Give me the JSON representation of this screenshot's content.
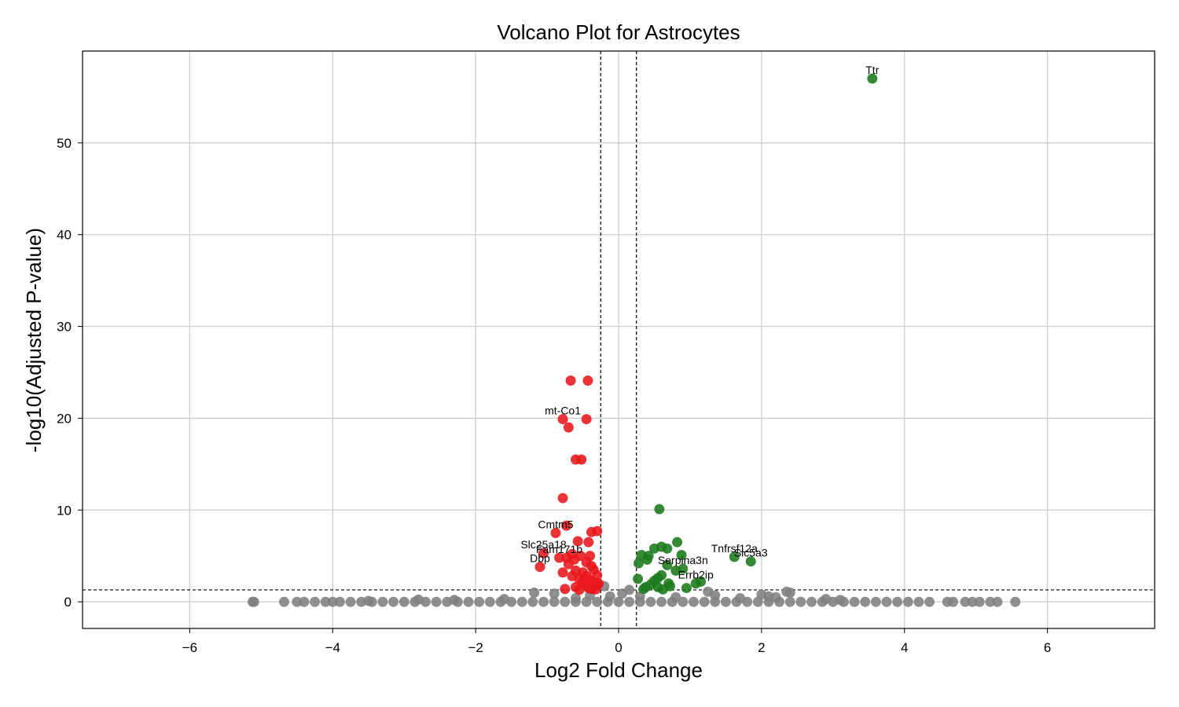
{
  "chart_data": {
    "type": "scatter",
    "title": "Volcano Plot for Astrocytes",
    "xlabel": "Log2 Fold Change",
    "ylabel": "-log10(Adjusted P-value)",
    "xlim": [
      -7.5,
      7.5
    ],
    "ylim": [
      -2.9,
      60
    ],
    "xticks": [
      -6,
      -4,
      -2,
      0,
      2,
      4,
      6
    ],
    "xtick_labels": [
      "−6",
      "−4",
      "−2",
      "0",
      "2",
      "4",
      "6"
    ],
    "yticks": [
      0,
      10,
      20,
      30,
      40,
      50
    ],
    "ytick_labels": [
      "0",
      "10",
      "20",
      "30",
      "40",
      "50"
    ],
    "grid": true,
    "thresholds": {
      "log2fc": [
        -0.25,
        0.25
      ],
      "neg_log10_padj": 1.3
    },
    "colors": {
      "up": "#1a7a1a",
      "down": "#e8161b",
      "ns": "#808080",
      "threshold_line": "#000000",
      "grid": "#cccccc"
    },
    "series": [
      {
        "key": "up",
        "points": [
          [
            3.55,
            57.0
          ],
          [
            0.57,
            10.1
          ],
          [
            0.82,
            6.5
          ],
          [
            0.6,
            6.0
          ],
          [
            0.5,
            5.8
          ],
          [
            0.68,
            5.8
          ],
          [
            0.88,
            5.1
          ],
          [
            0.32,
            5.1
          ],
          [
            0.42,
            5.0
          ],
          [
            0.4,
            4.6
          ],
          [
            0.28,
            4.2
          ],
          [
            0.68,
            4.0
          ],
          [
            1.62,
            4.9
          ],
          [
            1.85,
            4.4
          ],
          [
            0.9,
            3.6
          ],
          [
            0.8,
            3.4
          ],
          [
            0.6,
            2.9
          ],
          [
            0.55,
            2.6
          ],
          [
            0.27,
            2.5
          ],
          [
            0.5,
            2.3
          ],
          [
            0.7,
            2.0
          ],
          [
            1.08,
            2.0
          ],
          [
            1.15,
            2.2
          ],
          [
            0.45,
            1.9
          ],
          [
            0.38,
            1.6
          ],
          [
            0.35,
            1.4
          ],
          [
            0.55,
            1.6
          ],
          [
            0.62,
            1.35
          ],
          [
            0.95,
            1.5
          ],
          [
            0.72,
            1.7
          ]
        ]
      },
      {
        "key": "down",
        "points": [
          [
            -0.67,
            24.1
          ],
          [
            -0.43,
            24.1
          ],
          [
            -0.78,
            19.9
          ],
          [
            -0.45,
            19.9
          ],
          [
            -0.7,
            19.0
          ],
          [
            -0.6,
            15.5
          ],
          [
            -0.52,
            15.5
          ],
          [
            -0.78,
            11.3
          ],
          [
            -0.73,
            8.3
          ],
          [
            -0.88,
            7.5
          ],
          [
            -0.3,
            7.7
          ],
          [
            -0.38,
            7.6
          ],
          [
            -0.57,
            6.6
          ],
          [
            -0.42,
            6.5
          ],
          [
            -1.05,
            5.3
          ],
          [
            -0.65,
            5.2
          ],
          [
            -0.4,
            5.0
          ],
          [
            -0.83,
            4.8
          ],
          [
            -0.73,
            4.8
          ],
          [
            -0.62,
            4.6
          ],
          [
            -0.53,
            5.0
          ],
          [
            -0.7,
            4.1
          ],
          [
            -0.45,
            4.3
          ],
          [
            -1.1,
            3.8
          ],
          [
            -0.38,
            3.9
          ],
          [
            -0.6,
            3.4
          ],
          [
            -0.5,
            3.2
          ],
          [
            -0.35,
            3.5
          ],
          [
            -0.78,
            3.2
          ],
          [
            -0.3,
            2.9
          ],
          [
            -0.45,
            2.8
          ],
          [
            -0.55,
            2.5
          ],
          [
            -0.4,
            2.4
          ],
          [
            -0.35,
            2.1
          ],
          [
            -0.48,
            1.9
          ],
          [
            -0.3,
            1.8
          ],
          [
            -0.6,
            1.6
          ],
          [
            -0.42,
            1.5
          ],
          [
            -0.75,
            1.4
          ],
          [
            -0.55,
            1.3
          ],
          [
            -0.32,
            1.35
          ],
          [
            -0.38,
            1.4
          ],
          [
            -0.5,
            2.2
          ],
          [
            -0.28,
            2.0
          ],
          [
            -0.65,
            2.8
          ]
        ]
      },
      {
        "key": "ns",
        "points": [
          [
            -5.12,
            0.0
          ],
          [
            -5.1,
            0.0
          ],
          [
            -4.68,
            0.0
          ],
          [
            -4.5,
            0.0
          ],
          [
            -4.4,
            0.0
          ],
          [
            -4.25,
            0.0
          ],
          [
            -4.1,
            0.0
          ],
          [
            -4.0,
            0.0
          ],
          [
            -3.9,
            0.0
          ],
          [
            -3.75,
            0.0
          ],
          [
            -3.6,
            0.0
          ],
          [
            -3.45,
            0.0
          ],
          [
            -3.3,
            0.0
          ],
          [
            -3.15,
            0.0
          ],
          [
            -3.0,
            0.0
          ],
          [
            -2.85,
            0.0
          ],
          [
            -2.7,
            0.0
          ],
          [
            -2.55,
            0.0
          ],
          [
            -2.4,
            0.0
          ],
          [
            -2.25,
            0.0
          ],
          [
            -2.1,
            0.0
          ],
          [
            -1.95,
            0.0
          ],
          [
            -1.8,
            0.0
          ],
          [
            -1.65,
            0.0
          ],
          [
            -1.5,
            0.0
          ],
          [
            -1.35,
            0.0
          ],
          [
            -1.2,
            0.0
          ],
          [
            -1.05,
            0.0
          ],
          [
            -0.9,
            0.0
          ],
          [
            -0.75,
            0.0
          ],
          [
            -0.6,
            0.0
          ],
          [
            -0.45,
            0.0
          ],
          [
            -0.3,
            0.0
          ],
          [
            -0.15,
            0.0
          ],
          [
            0.0,
            0.0
          ],
          [
            0.15,
            0.0
          ],
          [
            0.3,
            0.0
          ],
          [
            0.45,
            0.0
          ],
          [
            0.6,
            0.0
          ],
          [
            0.75,
            0.0
          ],
          [
            0.9,
            0.0
          ],
          [
            1.05,
            0.0
          ],
          [
            1.2,
            0.0
          ],
          [
            1.35,
            0.0
          ],
          [
            1.5,
            0.0
          ],
          [
            1.65,
            0.0
          ],
          [
            1.8,
            0.0
          ],
          [
            1.95,
            0.0
          ],
          [
            2.1,
            0.0
          ],
          [
            2.25,
            0.0
          ],
          [
            2.4,
            0.0
          ],
          [
            2.55,
            0.0
          ],
          [
            2.7,
            0.0
          ],
          [
            2.85,
            0.0
          ],
          [
            3.0,
            0.0
          ],
          [
            3.15,
            0.0
          ],
          [
            3.3,
            0.0
          ],
          [
            3.45,
            0.0
          ],
          [
            3.6,
            0.0
          ],
          [
            3.75,
            0.0
          ],
          [
            3.9,
            0.0
          ],
          [
            4.05,
            0.0
          ],
          [
            4.2,
            0.0
          ],
          [
            4.35,
            0.0
          ],
          [
            4.6,
            0.0
          ],
          [
            4.68,
            0.0
          ],
          [
            4.85,
            0.0
          ],
          [
            4.95,
            0.0
          ],
          [
            5.05,
            0.0
          ],
          [
            5.2,
            0.0
          ],
          [
            5.3,
            0.0
          ],
          [
            5.55,
            0.0
          ],
          [
            -1.18,
            1.0
          ],
          [
            -0.9,
            0.9
          ],
          [
            -0.2,
            1.7
          ],
          [
            0.15,
            1.3
          ],
          [
            0.05,
            0.9
          ],
          [
            -0.12,
            0.6
          ],
          [
            1.25,
            1.1
          ],
          [
            1.35,
            0.7
          ],
          [
            2.0,
            0.8
          ],
          [
            2.1,
            0.6
          ],
          [
            2.35,
            1.1
          ],
          [
            2.4,
            1.0
          ],
          [
            2.2,
            0.5
          ],
          [
            1.7,
            0.4
          ],
          [
            0.8,
            0.5
          ],
          [
            -0.6,
            0.4
          ],
          [
            -1.6,
            0.3
          ],
          [
            -2.3,
            0.2
          ],
          [
            3.1,
            0.2
          ],
          [
            -3.5,
            0.1
          ],
          [
            2.9,
            0.3
          ],
          [
            -2.8,
            0.25
          ],
          [
            0.3,
            0.6
          ],
          [
            -0.4,
            0.7
          ]
        ]
      }
    ],
    "annotations": [
      {
        "text": "Ttr",
        "x": 3.55,
        "y": 57.0
      },
      {
        "text": "mt-Co1",
        "x": -0.78,
        "y": 19.9
      },
      {
        "text": "Cmtm5",
        "x": -0.88,
        "y": 7.5
      },
      {
        "text": "Slc25a18",
        "x": -1.05,
        "y": 5.3
      },
      {
        "text": "Fam171b",
        "x": -0.83,
        "y": 4.8
      },
      {
        "text": "Dbp",
        "x": -1.1,
        "y": 3.8
      },
      {
        "text": "Tnfrsf12a",
        "x": 1.62,
        "y": 4.9
      },
      {
        "text": "Slc5a3",
        "x": 1.85,
        "y": 4.4
      },
      {
        "text": "Serpina3n",
        "x": 0.9,
        "y": 3.6
      },
      {
        "text": "Errb2ip",
        "x": 1.08,
        "y": 2.0
      }
    ]
  }
}
